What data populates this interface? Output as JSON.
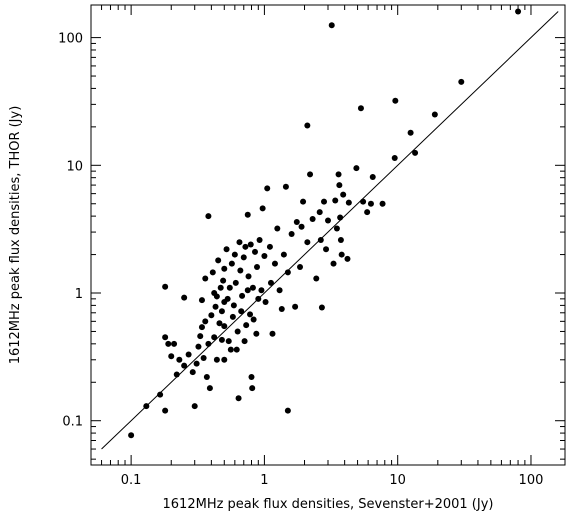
{
  "chart_data": {
    "type": "scatter",
    "title": "",
    "xlabel": "1612MHz peak flux densities, Sevenster+2001 (Jy)",
    "ylabel": "1612MHz peak flux densities, THOR (Jy)",
    "xscale": "log",
    "yscale": "log",
    "xlim": [
      0.05,
      180
    ],
    "ylim": [
      0.045,
      180
    ],
    "xticks": [
      {
        "value": 0.1,
        "label": "0.1"
      },
      {
        "value": 1,
        "label": "1"
      },
      {
        "value": 10,
        "label": "10"
      },
      {
        "value": 100,
        "label": "100"
      }
    ],
    "yticks": [
      {
        "value": 0.1,
        "label": "0.1"
      },
      {
        "value": 1,
        "label": "1"
      },
      {
        "value": 10,
        "label": "10"
      },
      {
        "value": 100,
        "label": "100"
      }
    ],
    "reference_line": {
      "label": "",
      "slope": 1,
      "from": [
        0.06,
        0.06
      ],
      "to": [
        160,
        160
      ]
    },
    "marker_color": "#000000",
    "grid": false,
    "points": [
      [
        0.1,
        0.077
      ],
      [
        0.13,
        0.13
      ],
      [
        0.165,
        0.16
      ],
      [
        0.18,
        0.12
      ],
      [
        0.18,
        1.12
      ],
      [
        0.18,
        0.45
      ],
      [
        0.19,
        0.4
      ],
      [
        0.21,
        0.4
      ],
      [
        0.2,
        0.32
      ],
      [
        0.22,
        0.23
      ],
      [
        0.23,
        0.3
      ],
      [
        0.25,
        0.92
      ],
      [
        0.25,
        0.27
      ],
      [
        0.27,
        0.33
      ],
      [
        0.29,
        0.24
      ],
      [
        0.3,
        0.13
      ],
      [
        0.31,
        0.28
      ],
      [
        0.32,
        0.38
      ],
      [
        0.33,
        0.46
      ],
      [
        0.34,
        0.54
      ],
      [
        0.34,
        0.88
      ],
      [
        0.35,
        0.31
      ],
      [
        0.36,
        0.6
      ],
      [
        0.36,
        1.3
      ],
      [
        0.37,
        0.22
      ],
      [
        0.38,
        0.4
      ],
      [
        0.38,
        4.0
      ],
      [
        0.39,
        0.18
      ],
      [
        0.4,
        0.67
      ],
      [
        0.41,
        1.45
      ],
      [
        0.42,
        1.0
      ],
      [
        0.42,
        0.45
      ],
      [
        0.43,
        0.78
      ],
      [
        0.44,
        0.94
      ],
      [
        0.44,
        0.3
      ],
      [
        0.45,
        1.8
      ],
      [
        0.46,
        0.58
      ],
      [
        0.47,
        1.1
      ],
      [
        0.48,
        0.72
      ],
      [
        0.48,
        0.43
      ],
      [
        0.49,
        1.25
      ],
      [
        0.5,
        1.55
      ],
      [
        0.5,
        0.85
      ],
      [
        0.5,
        0.55
      ],
      [
        0.5,
        0.3
      ],
      [
        0.52,
        2.2
      ],
      [
        0.53,
        0.9
      ],
      [
        0.54,
        0.42
      ],
      [
        0.55,
        1.1
      ],
      [
        0.56,
        0.36
      ],
      [
        0.57,
        1.7
      ],
      [
        0.58,
        0.65
      ],
      [
        0.59,
        0.8
      ],
      [
        0.6,
        2.0
      ],
      [
        0.61,
        1.2
      ],
      [
        0.62,
        0.36
      ],
      [
        0.63,
        0.5
      ],
      [
        0.64,
        0.15
      ],
      [
        0.65,
        2.5
      ],
      [
        0.66,
        1.5
      ],
      [
        0.67,
        0.72
      ],
      [
        0.68,
        0.95
      ],
      [
        0.7,
        1.9
      ],
      [
        0.71,
        0.42
      ],
      [
        0.72,
        2.3
      ],
      [
        0.73,
        0.56
      ],
      [
        0.75,
        1.05
      ],
      [
        0.75,
        4.1
      ],
      [
        0.76,
        1.35
      ],
      [
        0.78,
        0.68
      ],
      [
        0.79,
        2.4
      ],
      [
        0.8,
        0.22
      ],
      [
        0.81,
        0.18
      ],
      [
        0.82,
        1.1
      ],
      [
        0.83,
        0.62
      ],
      [
        0.85,
        2.1
      ],
      [
        0.87,
        0.48
      ],
      [
        0.88,
        1.6
      ],
      [
        0.9,
        0.9
      ],
      [
        0.92,
        2.6
      ],
      [
        0.95,
        1.05
      ],
      [
        0.97,
        4.6
      ],
      [
        1.0,
        1.95
      ],
      [
        1.02,
        0.85
      ],
      [
        1.05,
        6.6
      ],
      [
        1.1,
        2.3
      ],
      [
        1.12,
        1.2
      ],
      [
        1.15,
        0.48
      ],
      [
        1.2,
        1.7
      ],
      [
        1.25,
        3.2
      ],
      [
        1.3,
        1.05
      ],
      [
        1.35,
        0.75
      ],
      [
        1.4,
        2.0
      ],
      [
        1.45,
        6.8
      ],
      [
        1.5,
        0.12
      ],
      [
        1.5,
        1.45
      ],
      [
        1.6,
        2.9
      ],
      [
        1.7,
        0.78
      ],
      [
        1.75,
        3.6
      ],
      [
        1.85,
        1.6
      ],
      [
        1.9,
        3.3
      ],
      [
        1.95,
        5.2
      ],
      [
        2.1,
        20.5
      ],
      [
        2.1,
        2.5
      ],
      [
        2.2,
        8.5
      ],
      [
        2.3,
        3.8
      ],
      [
        2.45,
        1.3
      ],
      [
        2.6,
        4.3
      ],
      [
        2.65,
        2.6
      ],
      [
        2.7,
        0.77
      ],
      [
        2.8,
        5.2
      ],
      [
        2.9,
        2.2
      ],
      [
        3.0,
        3.7
      ],
      [
        3.2,
        125
      ],
      [
        3.3,
        1.7
      ],
      [
        3.4,
        5.3
      ],
      [
        3.5,
        3.2
      ],
      [
        3.6,
        8.5
      ],
      [
        3.65,
        7.0
      ],
      [
        3.7,
        3.9
      ],
      [
        3.75,
        2.6
      ],
      [
        3.8,
        2.0
      ],
      [
        3.9,
        5.9
      ],
      [
        4.2,
        1.85
      ],
      [
        4.3,
        5.1
      ],
      [
        4.9,
        9.5
      ],
      [
        5.3,
        28
      ],
      [
        5.5,
        5.2
      ],
      [
        5.9,
        4.3
      ],
      [
        6.3,
        5.0
      ],
      [
        6.5,
        8.1
      ],
      [
        7.7,
        5.0
      ],
      [
        9.5,
        11.4
      ],
      [
        9.6,
        32
      ],
      [
        12.5,
        18
      ],
      [
        13.5,
        12.5
      ],
      [
        19,
        25
      ],
      [
        30,
        45
      ],
      [
        80,
        160
      ]
    ]
  }
}
